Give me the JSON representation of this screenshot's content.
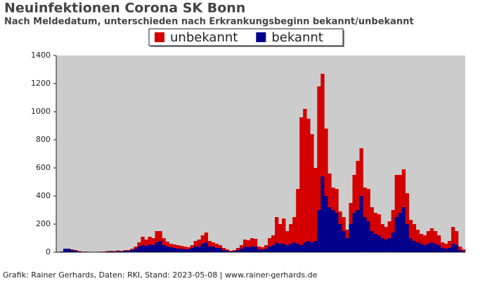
{
  "chart_data": {
    "type": "stacked_bar",
    "title": "Neuinfektionen Corona SK Bonn",
    "subtitle": "Nach Meldedatum, unterschieden nach Erkrankungsbeginn bekannt/unbekannt",
    "footer": "Grafik: Rainer Gerhards, Daten: RKI, Stand: 2023-05-08 | www.rainer-gerhards.de",
    "categories": [
      null,
      null,
      null,
      null,
      null,
      null,
      null,
      null,
      null,
      null,
      null,
      null,
      null,
      null,
      null,
      null,
      null,
      null,
      null,
      null,
      null,
      null,
      null,
      null,
      null,
      null,
      null,
      null,
      null,
      null,
      null,
      null,
      null,
      null,
      null,
      null,
      null,
      null,
      null,
      null,
      null,
      null,
      null,
      null,
      null,
      null,
      null,
      null,
      null,
      null,
      null,
      null,
      null,
      null,
      null,
      null,
      null,
      null,
      null,
      null,
      null,
      null,
      null,
      null,
      null,
      null,
      null,
      null,
      null,
      null,
      null,
      null,
      null,
      null,
      null,
      null,
      null,
      null,
      null,
      null,
      null,
      null,
      null,
      null,
      null,
      null,
      null,
      null,
      null,
      null,
      null,
      null,
      null,
      null,
      null,
      null,
      null,
      null,
      null,
      null,
      null,
      null,
      null,
      null,
      null,
      null,
      null,
      null,
      null,
      null,
      null,
      null,
      null,
      null,
      null,
      null
    ],
    "series": [
      {
        "name": "bekannt",
        "color": "#00008b",
        "values": [
          0,
          5,
          25,
          25,
          15,
          10,
          5,
          3,
          3,
          2,
          1,
          2,
          3,
          3,
          5,
          5,
          5,
          8,
          6,
          10,
          10,
          15,
          25,
          40,
          50,
          45,
          55,
          50,
          70,
          80,
          50,
          40,
          35,
          30,
          25,
          25,
          20,
          20,
          30,
          40,
          40,
          60,
          70,
          40,
          40,
          30,
          30,
          15,
          10,
          5,
          8,
          15,
          25,
          40,
          35,
          40,
          40,
          20,
          20,
          25,
          40,
          50,
          70,
          60,
          60,
          50,
          60,
          70,
          60,
          50,
          70,
          80,
          70,
          80,
          300,
          540,
          400,
          320,
          300,
          280,
          200,
          150,
          100,
          200,
          280,
          300,
          400,
          250,
          220,
          150,
          130,
          120,
          100,
          90,
          100,
          140,
          250,
          280,
          320,
          200,
          100,
          80,
          70,
          60,
          50,
          60,
          70,
          60,
          50,
          30,
          25,
          30,
          60,
          50,
          15,
          8
        ]
      },
      {
        "name": "unbekannt",
        "color": "#d40000",
        "values": [
          0,
          0,
          0,
          0,
          5,
          5,
          3,
          2,
          2,
          1,
          1,
          1,
          1,
          2,
          3,
          5,
          3,
          4,
          4,
          5,
          5,
          10,
          15,
          30,
          60,
          45,
          55,
          50,
          80,
          70,
          50,
          35,
          25,
          25,
          25,
          20,
          20,
          15,
          20,
          40,
          50,
          60,
          70,
          40,
          30,
          30,
          20,
          15,
          10,
          5,
          7,
          15,
          25,
          50,
          50,
          60,
          55,
          20,
          15,
          25,
          60,
          70,
          180,
          140,
          180,
          100,
          140,
          180,
          390,
          910,
          950,
          870,
          770,
          520,
          880,
          730,
          480,
          240,
          160,
          170,
          90,
          100,
          60,
          150,
          270,
          350,
          340,
          210,
          230,
          170,
          150,
          150,
          100,
          90,
          120,
          160,
          300,
          270,
          270,
          220,
          130,
          120,
          90,
          70,
          70,
          90,
          100,
          90,
          70,
          40,
          35,
          50,
          120,
          100,
          25,
          12
        ]
      }
    ],
    "legend_order": [
      1,
      0
    ],
    "plot_background": "#cccccc",
    "ylim": [
      0,
      1400
    ],
    "yticks": [
      0,
      200,
      400,
      600,
      800,
      1000,
      1200,
      1400
    ]
  }
}
